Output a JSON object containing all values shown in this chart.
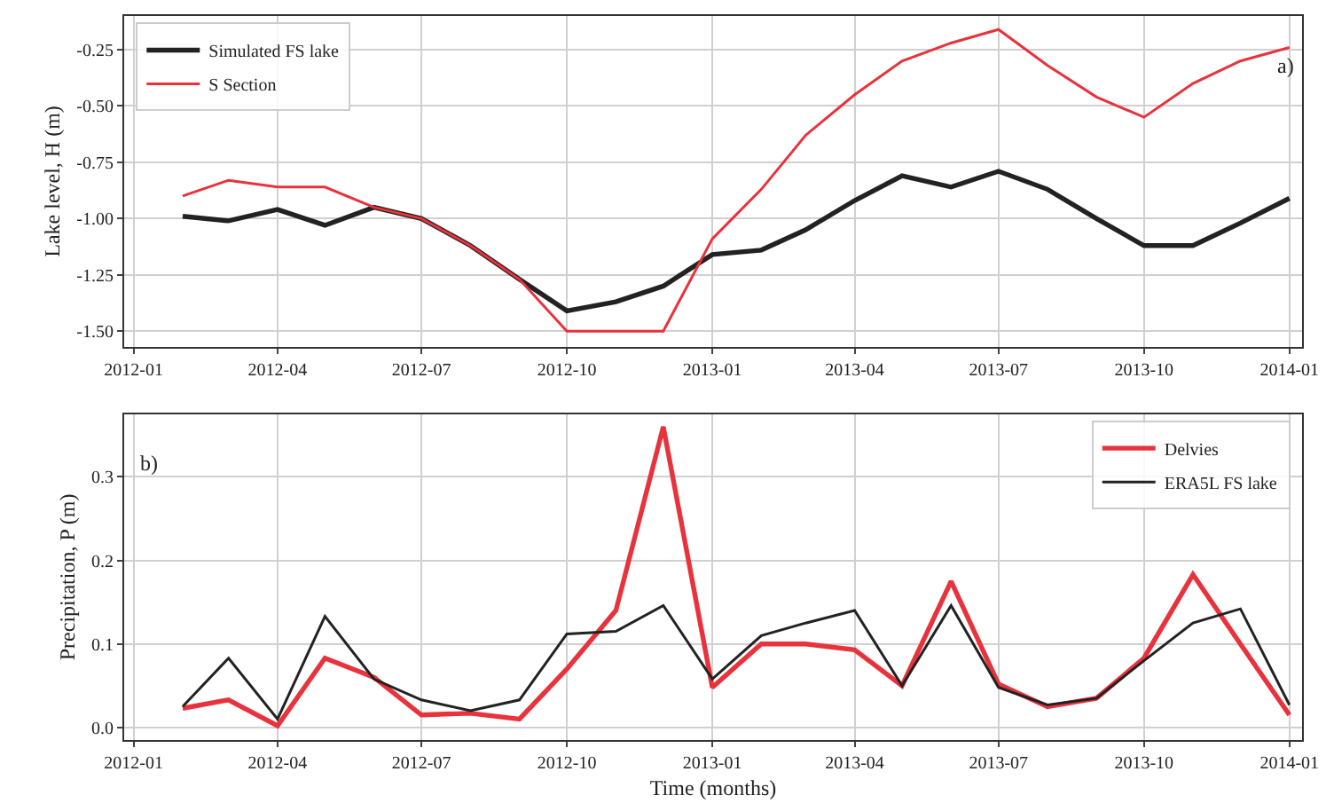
{
  "chart_data": [
    {
      "type": "line",
      "ylabel": "Lake level, H (m)",
      "annotations": [
        "a)"
      ],
      "x": [
        "2012-02",
        "2012-03",
        "2012-04",
        "2012-05",
        "2012-06",
        "2012-07",
        "2012-08",
        "2012-09",
        "2012-10",
        "2012-11",
        "2012-12",
        "2013-01",
        "2013-02",
        "2013-03",
        "2013-04",
        "2013-05",
        "2013-06",
        "2013-07",
        "2013-08",
        "2013-09",
        "2013-10",
        "2013-11",
        "2013-12",
        "2014-01"
      ],
      "series": [
        {
          "name": "Simulated FS lake",
          "color": "#222222",
          "values": [
            -0.99,
            -1.01,
            -0.96,
            -1.03,
            -0.95,
            -1.0,
            -1.12,
            -1.27,
            -1.41,
            -1.37,
            -1.3,
            -1.16,
            -1.14,
            -1.05,
            -0.92,
            -0.81,
            -0.86,
            -0.79,
            -0.87,
            -1.0,
            -1.12,
            -1.12,
            -1.02,
            -0.91
          ]
        },
        {
          "name": "S Section",
          "color": "#e8323c",
          "values": [
            -0.9,
            -0.83,
            -0.86,
            -0.86,
            -0.95,
            -1.0,
            -1.12,
            -1.27,
            -1.5,
            -1.5,
            -1.5,
            -1.09,
            -0.87,
            -0.63,
            -0.45,
            -0.3,
            -0.22,
            -0.16,
            -0.32,
            -0.46,
            -0.55,
            -0.4,
            -0.3,
            -0.24
          ]
        }
      ],
      "xlim": [
        "2011-12-26",
        "2014-01-09"
      ],
      "xticks": [
        "2012-01",
        "2012-04",
        "2012-07",
        "2012-10",
        "2013-01",
        "2013-04",
        "2013-07",
        "2013-10",
        "2014-01"
      ],
      "ylim": [
        -1.57,
        -0.1
      ],
      "yticks": [
        {
          "value": -1.5,
          "label": "-1.50"
        },
        -1.25,
        {
          "value": -1,
          "label": "-1.00"
        },
        -0.75,
        {
          "value": -0.5,
          "label": "-0.50"
        },
        -0.25
      ],
      "grid": true,
      "legend": "top left",
      "line_style": "solid"
    },
    {
      "type": "line",
      "xlabel": "Time (months)",
      "ylabel": "Precipitation, P (m)",
      "annotations": [
        "b)"
      ],
      "x": [
        "2012-02",
        "2012-03",
        "2012-04",
        "2012-05",
        "2012-06",
        "2012-07",
        "2012-08",
        "2012-09",
        "2012-10",
        "2012-11",
        "2012-12",
        "2013-01",
        "2013-02",
        "2013-03",
        "2013-04",
        "2013-05",
        "2013-06",
        "2013-07",
        "2013-08",
        "2013-09",
        "2013-10",
        "2013-11",
        "2013-12",
        "2014-01"
      ],
      "series": [
        {
          "name": "Delvies",
          "color": "#e8323c",
          "values": [
            0.023,
            0.033,
            0.002,
            0.083,
            0.06,
            0.015,
            0.017,
            0.01,
            0.07,
            0.14,
            0.36,
            0.048,
            0.1,
            0.1,
            0.093,
            0.05,
            0.175,
            0.052,
            0.025,
            0.035,
            0.083,
            0.183,
            0.1,
            0.015
          ]
        },
        {
          "name": "ERA5L FS lake",
          "color": "#222222",
          "values": [
            0.025,
            0.083,
            0.01,
            0.133,
            0.058,
            0.033,
            0.02,
            0.033,
            0.112,
            0.115,
            0.146,
            0.058,
            0.11,
            0.125,
            0.14,
            0.05,
            0.146,
            0.048,
            0.027,
            0.035,
            0.08,
            0.125,
            0.142,
            0.027
          ]
        }
      ],
      "xlim": [
        "2011-12-26",
        "2014-01-09"
      ],
      "xticks": [
        "2012-01",
        "2012-04",
        "2012-07",
        "2012-10",
        "2013-01",
        "2013-04",
        "2013-07",
        "2013-10",
        "2014-01"
      ],
      "ylim": [
        -0.015,
        0.375
      ],
      "yticks": [
        {
          "value": 0,
          "label": "0.0"
        },
        0.1,
        0.2,
        0.3
      ],
      "grid": true,
      "legend": "top right",
      "line_style": "solid"
    }
  ]
}
